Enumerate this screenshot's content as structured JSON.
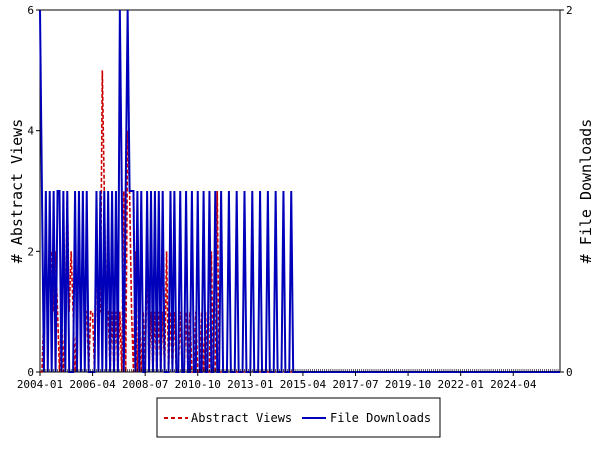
{
  "chart_data": {
    "type": "line",
    "xlabel": "",
    "ylabel": "# Abstract Views",
    "y2label": "# File Downloads",
    "xlim": [
      "2004-01",
      "2026-04"
    ],
    "ylim": [
      0,
      6
    ],
    "y2lim": [
      0,
      2
    ],
    "yticks": [
      "0",
      "2",
      "4",
      "6"
    ],
    "y2ticks": [
      "0",
      "2"
    ],
    "xtick_labels": [
      "2004-01",
      "2006-04",
      "2008-07",
      "2010-10",
      "2013-01",
      "2015-04",
      "2017-07",
      "2019-10",
      "2022-01",
      "2024-04"
    ],
    "grid": false,
    "legend_position": "bottom",
    "series": [
      {
        "name": "Abstract Views",
        "axis": "left",
        "color": "#cc0000",
        "style": "dashed",
        "points": [
          [
            "2004-03",
            1
          ],
          [
            "2004-04",
            2
          ],
          [
            "2004-05",
            1
          ],
          [
            "2004-06",
            2
          ],
          [
            "2004-07",
            2
          ],
          [
            "2004-08",
            1
          ],
          [
            "2004-09",
            2
          ],
          [
            "2004-10",
            1
          ],
          [
            "2004-11",
            0
          ],
          [
            "2004-12",
            1
          ],
          [
            "2005-01",
            0
          ],
          [
            "2005-02",
            1
          ],
          [
            "2005-03",
            3
          ],
          [
            "2005-04",
            1
          ],
          [
            "2005-05",
            2
          ],
          [
            "2005-06",
            1
          ],
          [
            "2005-08",
            1
          ],
          [
            "2005-09",
            2
          ],
          [
            "2005-10",
            1
          ],
          [
            "2005-11",
            2
          ],
          [
            "2005-12",
            1
          ],
          [
            "2006-01",
            1
          ],
          [
            "2006-02",
            0
          ],
          [
            "2006-03",
            1
          ],
          [
            "2006-04",
            1
          ],
          [
            "2006-05",
            0
          ],
          [
            "2006-06",
            2
          ],
          [
            "2006-07",
            1
          ],
          [
            "2006-08",
            1
          ],
          [
            "2006-09",
            5
          ],
          [
            "2006-10",
            3
          ],
          [
            "2006-11",
            1
          ],
          [
            "2006-12",
            1
          ],
          [
            "2007-01",
            0
          ],
          [
            "2007-02",
            1
          ],
          [
            "2007-04",
            1
          ],
          [
            "2007-06",
            1
          ],
          [
            "2007-08",
            3
          ],
          [
            "2007-10",
            4
          ],
          [
            "2007-11",
            3
          ],
          [
            "2007-12",
            1
          ],
          [
            "2008-02",
            2
          ],
          [
            "2008-04",
            1
          ],
          [
            "2008-06",
            1
          ],
          [
            "2008-08",
            2
          ],
          [
            "2008-10",
            1
          ],
          [
            "2008-12",
            1
          ],
          [
            "2009-02",
            1
          ],
          [
            "2009-04",
            1
          ],
          [
            "2009-06",
            2
          ],
          [
            "2009-08",
            1
          ],
          [
            "2009-10",
            1
          ],
          [
            "2010-01",
            1
          ],
          [
            "2010-04",
            1
          ],
          [
            "2010-06",
            1
          ],
          [
            "2010-09",
            1
          ],
          [
            "2010-12",
            1
          ],
          [
            "2011-02",
            1
          ],
          [
            "2011-05",
            2
          ],
          [
            "2011-08",
            3
          ]
        ]
      },
      {
        "name": "File Downloads",
        "axis": "right",
        "color": "#0000bb",
        "style": "solid",
        "points": [
          [
            "2004-01",
            2
          ],
          [
            "2004-02",
            1
          ],
          [
            "2004-03",
            0
          ],
          [
            "2004-04",
            1
          ],
          [
            "2004-05",
            0
          ],
          [
            "2004-06",
            1
          ],
          [
            "2004-08",
            1
          ],
          [
            "2004-09",
            0
          ],
          [
            "2004-10",
            1
          ],
          [
            "2004-11",
            1
          ],
          [
            "2004-12",
            0
          ],
          [
            "2005-01",
            1
          ],
          [
            "2005-02",
            0
          ],
          [
            "2005-03",
            1
          ],
          [
            "2005-04",
            0
          ],
          [
            "2005-07",
            1
          ],
          [
            "2005-09",
            1
          ],
          [
            "2005-10",
            0
          ],
          [
            "2005-11",
            1
          ],
          [
            "2006-01",
            1
          ],
          [
            "2006-02",
            0
          ],
          [
            "2006-06",
            1
          ],
          [
            "2006-08",
            1
          ],
          [
            "2006-10",
            1
          ],
          [
            "2006-12",
            1
          ],
          [
            "2007-02",
            1
          ],
          [
            "2007-04",
            1
          ],
          [
            "2007-06",
            2
          ],
          [
            "2007-07",
            1
          ],
          [
            "2007-09",
            1
          ],
          [
            "2007-10",
            2
          ],
          [
            "2007-11",
            1
          ],
          [
            "2007-12",
            1
          ],
          [
            "2008-01",
            1
          ],
          [
            "2008-03",
            1
          ],
          [
            "2008-05",
            1
          ],
          [
            "2008-08",
            1
          ],
          [
            "2008-10",
            1
          ],
          [
            "2008-12",
            1
          ],
          [
            "2009-02",
            1
          ],
          [
            "2009-04",
            1
          ],
          [
            "2009-08",
            1
          ],
          [
            "2009-10",
            1
          ],
          [
            "2010-01",
            1
          ],
          [
            "2010-04",
            1
          ],
          [
            "2010-07",
            1
          ],
          [
            "2010-10",
            1
          ],
          [
            "2011-01",
            1
          ],
          [
            "2011-04",
            1
          ],
          [
            "2011-07",
            1
          ],
          [
            "2011-10",
            1
          ],
          [
            "2012-02",
            1
          ],
          [
            "2012-06",
            1
          ],
          [
            "2012-10",
            1
          ],
          [
            "2013-02",
            1
          ],
          [
            "2013-06",
            1
          ],
          [
            "2013-10",
            1
          ],
          [
            "2014-02",
            1
          ],
          [
            "2014-06",
            1
          ],
          [
            "2014-10",
            1
          ]
        ]
      }
    ]
  }
}
